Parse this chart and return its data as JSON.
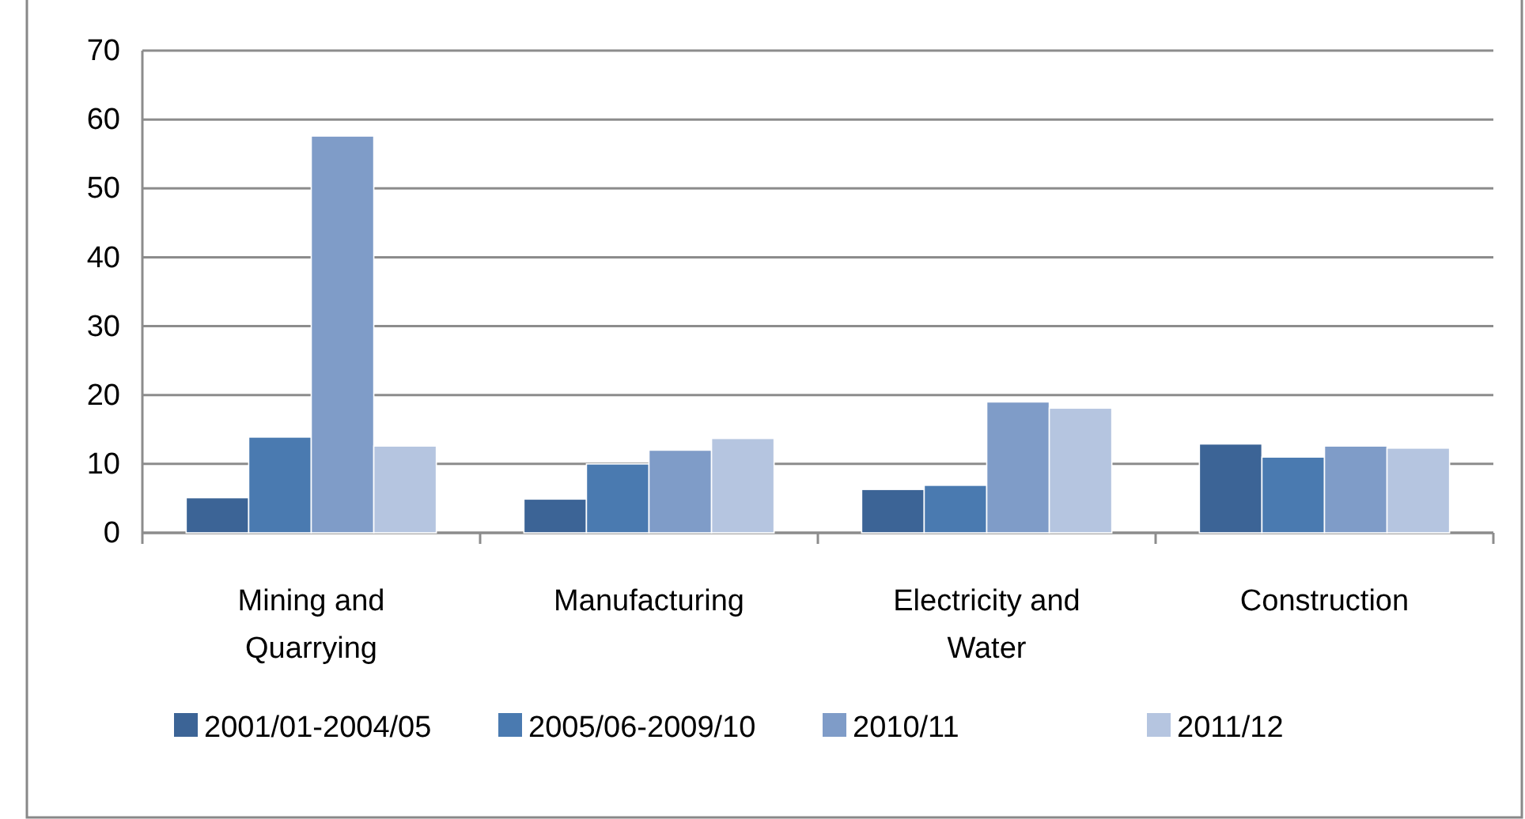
{
  "chart_data": {
    "type": "bar",
    "categories": [
      "Mining and Quarrying",
      "Manufacturing",
      "Electricity and Water",
      "Construction"
    ],
    "series": [
      {
        "name": "2001/01-2004/05",
        "color": "#3c6496",
        "values": [
          5.1,
          4.9,
          6.3,
          12.9
        ]
      },
      {
        "name": "2005/06-2009/10",
        "color": "#4a7ab0",
        "values": [
          13.9,
          10,
          6.9,
          11
        ]
      },
      {
        "name": "2010/11",
        "color": "#7f9cc8",
        "values": [
          57.6,
          12,
          19,
          12.6
        ]
      },
      {
        "name": "2011/12",
        "color": "#b5c5e0",
        "values": [
          12.6,
          13.7,
          18.1,
          12.3
        ]
      }
    ],
    "ylim": [
      0,
      70
    ],
    "yticks": [
      0,
      10,
      20,
      30,
      40,
      50,
      60,
      70
    ],
    "grid": "y",
    "legend": "bottom"
  }
}
